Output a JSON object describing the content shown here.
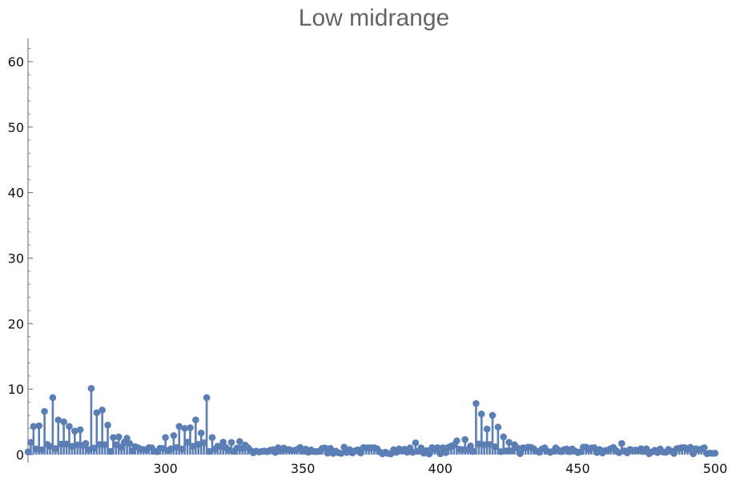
{
  "chart_data": {
    "type": "stem",
    "title": "Low midrange",
    "xlabel": "",
    "ylabel": "",
    "xlim": [
      250,
      500
    ],
    "ylim": [
      0,
      63
    ],
    "x_ticks": [
      300,
      350,
      400,
      450,
      500
    ],
    "y_ticks": [
      0,
      10,
      20,
      30,
      40,
      50,
      60
    ],
    "grid": false,
    "series_color": "#5b7fb5",
    "peaks": [
      {
        "x": 252,
        "y": 4.3
      },
      {
        "x": 254,
        "y": 4.4
      },
      {
        "x": 256,
        "y": 6.6
      },
      {
        "x": 259,
        "y": 8.7
      },
      {
        "x": 261,
        "y": 5.3
      },
      {
        "x": 263,
        "y": 5.0
      },
      {
        "x": 265,
        "y": 4.3
      },
      {
        "x": 267,
        "y": 3.6
      },
      {
        "x": 269,
        "y": 3.8
      },
      {
        "x": 273,
        "y": 10.1
      },
      {
        "x": 275,
        "y": 6.4
      },
      {
        "x": 277,
        "y": 6.8
      },
      {
        "x": 279,
        "y": 4.5
      },
      {
        "x": 281,
        "y": 2.6
      },
      {
        "x": 283,
        "y": 2.7
      },
      {
        "x": 286,
        "y": 2.5
      },
      {
        "x": 300,
        "y": 2.6
      },
      {
        "x": 303,
        "y": 2.9
      },
      {
        "x": 305,
        "y": 4.3
      },
      {
        "x": 307,
        "y": 4.0
      },
      {
        "x": 309,
        "y": 4.1
      },
      {
        "x": 311,
        "y": 5.3
      },
      {
        "x": 313,
        "y": 3.3
      },
      {
        "x": 315,
        "y": 8.7
      },
      {
        "x": 317,
        "y": 2.6
      },
      {
        "x": 321,
        "y": 1.9
      },
      {
        "x": 327,
        "y": 2.0
      },
      {
        "x": 391,
        "y": 1.8
      },
      {
        "x": 406,
        "y": 2.1
      },
      {
        "x": 409,
        "y": 2.3
      },
      {
        "x": 413,
        "y": 7.8
      },
      {
        "x": 415,
        "y": 6.2
      },
      {
        "x": 417,
        "y": 3.9
      },
      {
        "x": 419,
        "y": 6.0
      },
      {
        "x": 421,
        "y": 4.2
      },
      {
        "x": 423,
        "y": 2.7
      },
      {
        "x": 466,
        "y": 1.7
      }
    ],
    "baseline_max": 1.5,
    "note_on_density": "dense stems at unit spacing from 250 to 500 with small values below baseline_max between peaks"
  }
}
